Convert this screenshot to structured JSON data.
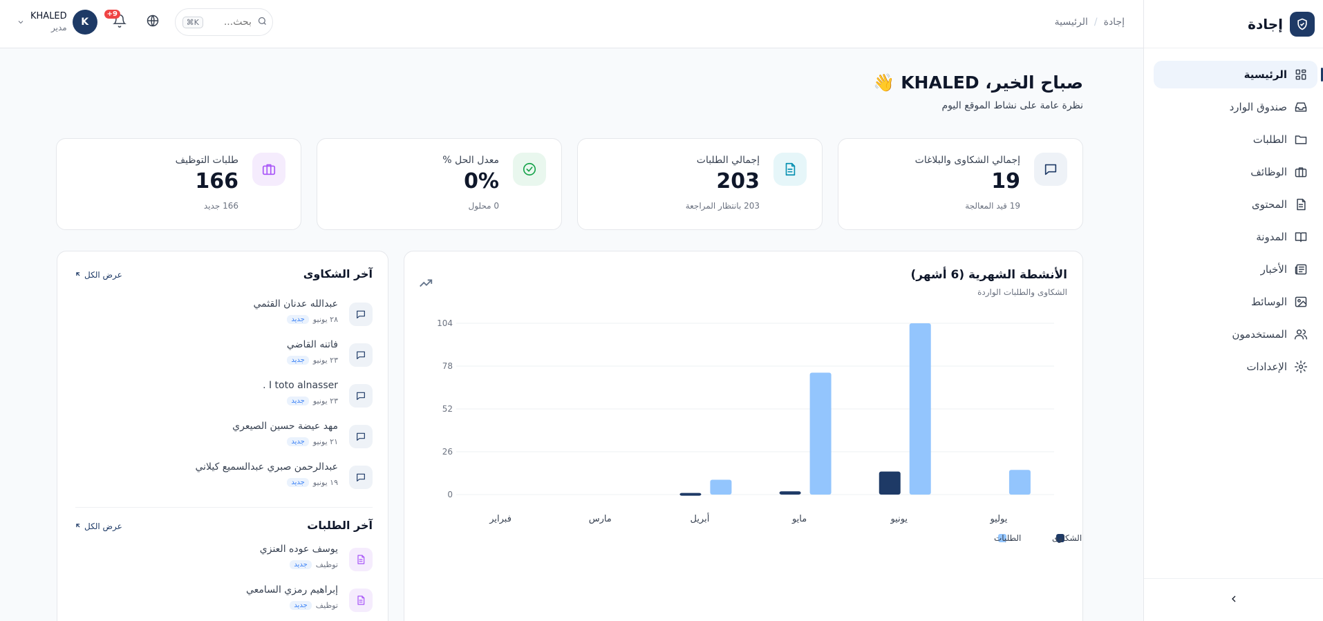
{
  "brand": {
    "name": "إجادة"
  },
  "sidebar": {
    "items": [
      {
        "label": "الرئيسية",
        "icon": "dashboard-icon",
        "active": true
      },
      {
        "label": "صندوق الوارد",
        "icon": "inbox-icon"
      },
      {
        "label": "الطلبات",
        "icon": "folder-icon"
      },
      {
        "label": "الوظائف",
        "icon": "briefcase-icon"
      },
      {
        "label": "المحتوى",
        "icon": "document-icon"
      },
      {
        "label": "المدونة",
        "icon": "book-icon"
      },
      {
        "label": "الأخبار",
        "icon": "newspaper-icon"
      },
      {
        "label": "الوسائط",
        "icon": "image-icon"
      },
      {
        "label": "المستخدمون",
        "icon": "users-icon"
      },
      {
        "label": "الإعدادات",
        "icon": "gear-icon"
      }
    ],
    "collapse_icon": "chevron-left-icon"
  },
  "header": {
    "breadcrumb": [
      "إجادة",
      "الرئيسية"
    ],
    "search_placeholder": "بحث...",
    "search_shortcut": "⌘K",
    "notifications_badge": "+9",
    "user": {
      "name": "KHALED",
      "role": "مدير",
      "initial": "K"
    }
  },
  "greeting": {
    "title": "صباح الخير، KHALED 👋",
    "subtitle": "نظرة عامة على نشاط الموقع اليوم"
  },
  "stats": [
    {
      "label": "إجمالي الشكاوى والبلاغات",
      "value": "19",
      "sub": "19 قيد المعالجة",
      "icon": "message-icon",
      "color": "#1e3a66",
      "bg": "#eef2f7"
    },
    {
      "label": "إجمالي الطلبات",
      "value": "203",
      "sub": "203 بانتظار المراجعة",
      "icon": "document-icon",
      "color": "#0891b2",
      "bg": "#e6f6f9"
    },
    {
      "label": "معدل الحل %",
      "value": "0%",
      "sub": "0 محلول",
      "icon": "check-circle-icon",
      "color": "#16a34a",
      "bg": "#e9f7ee"
    },
    {
      "label": "طلبات التوظيف",
      "value": "166",
      "sub": "166 جديد",
      "icon": "briefcase-icon",
      "color": "#a855f7",
      "bg": "#f5ecfd"
    }
  ],
  "chart_card": {
    "title": "الأنشطة الشهرية (6 أشهر)",
    "subtitle": "الشكاوى والطلبات الواردة"
  },
  "chart_data": {
    "type": "bar",
    "categories": [
      "يوليو",
      "يونيو",
      "مايو",
      "أبريل",
      "مارس",
      "فبراير"
    ],
    "series": [
      {
        "name": "الشكاوى",
        "values": [
          0,
          14,
          2,
          1,
          0,
          0
        ],
        "color": "#1e3a66"
      },
      {
        "name": "الطلبات",
        "values": [
          15,
          104,
          74,
          9,
          0,
          0
        ],
        "color": "#93c5fd"
      }
    ],
    "ylim": [
      0,
      104
    ],
    "yticks": [
      "0",
      "26",
      "52",
      "78",
      "104"
    ],
    "grid": true,
    "legend": "bottom-right"
  },
  "complaints": {
    "title": "آخر الشكاوى",
    "view_all": "عرض الكل",
    "items": [
      {
        "name": "عبدالله عدنان القثمي",
        "date": "٢٨ يونيو",
        "status": "جديد"
      },
      {
        "name": "فاتنه القاضي",
        "date": "٢٣ يونيو",
        "status": "جديد"
      },
      {
        "name": "I toto alnasser .",
        "date": "٢٣ يونيو",
        "status": "جديد"
      },
      {
        "name": "مهد عيضة حسين الصيعري",
        "date": "٢١ يونيو",
        "status": "جديد"
      },
      {
        "name": "عبدالرحمن صبري عبدالسميع كيلاني",
        "date": "١٩ يونيو",
        "status": "جديد"
      }
    ]
  },
  "requests": {
    "title": "آخر الطلبات",
    "view_all": "عرض الكل",
    "items": [
      {
        "name": "يوسف عوده العنزي",
        "type": "توظيف",
        "status": "جديد"
      },
      {
        "name": "إبراهيم رمزي السامعي",
        "type": "توظيف",
        "status": "جديد"
      }
    ]
  }
}
